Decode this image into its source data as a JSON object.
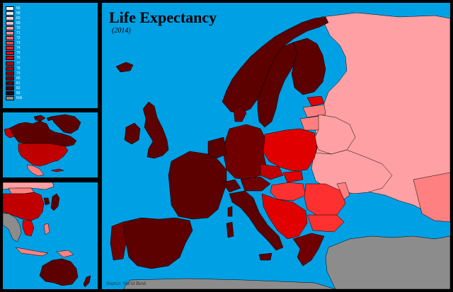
{
  "map": {
    "title": "Life Expectancy",
    "subtitle": "(2014)",
    "source": "Source: World Bank"
  },
  "legend": {
    "items": [
      {
        "label": "56",
        "color": "#ffffff"
      },
      {
        "label": "58",
        "color": "#ffe8ea"
      },
      {
        "label": "60",
        "color": "#ffd2d6"
      },
      {
        "label": "68",
        "color": "#ffbcc2"
      },
      {
        "label": "70",
        "color": "#ffa0a8"
      },
      {
        "label": "71",
        "color": "#ff8a8a"
      },
      {
        "label": "72",
        "color": "#ff6666"
      },
      {
        "label": "73",
        "color": "#ff4444"
      },
      {
        "label": "74",
        "color": "#ff2020"
      },
      {
        "label": "75",
        "color": "#f00000"
      },
      {
        "label": "76",
        "color": "#d80000"
      },
      {
        "label": "77",
        "color": "#c00000"
      },
      {
        "label": "78",
        "color": "#a80000"
      },
      {
        "label": "79",
        "color": "#900000"
      },
      {
        "label": "80",
        "color": "#780000"
      },
      {
        "label": "81",
        "color": "#600000"
      },
      {
        "label": "82",
        "color": "#480000"
      },
      {
        "label": "83",
        "color": "#300000"
      },
      {
        "label": "N/A",
        "color": "#8c8c8c"
      }
    ]
  },
  "colors": {
    "ocean": "#00a0e4",
    "highest": "#5c0000",
    "very_high": "#700000",
    "high": "#8a0000",
    "mid_high": "#c00000",
    "mid": "#e00000",
    "mid_low": "#ff3030",
    "low": "#ff8080",
    "lowest": "#ffa0a4",
    "no_data": "#8c8c8c"
  }
}
